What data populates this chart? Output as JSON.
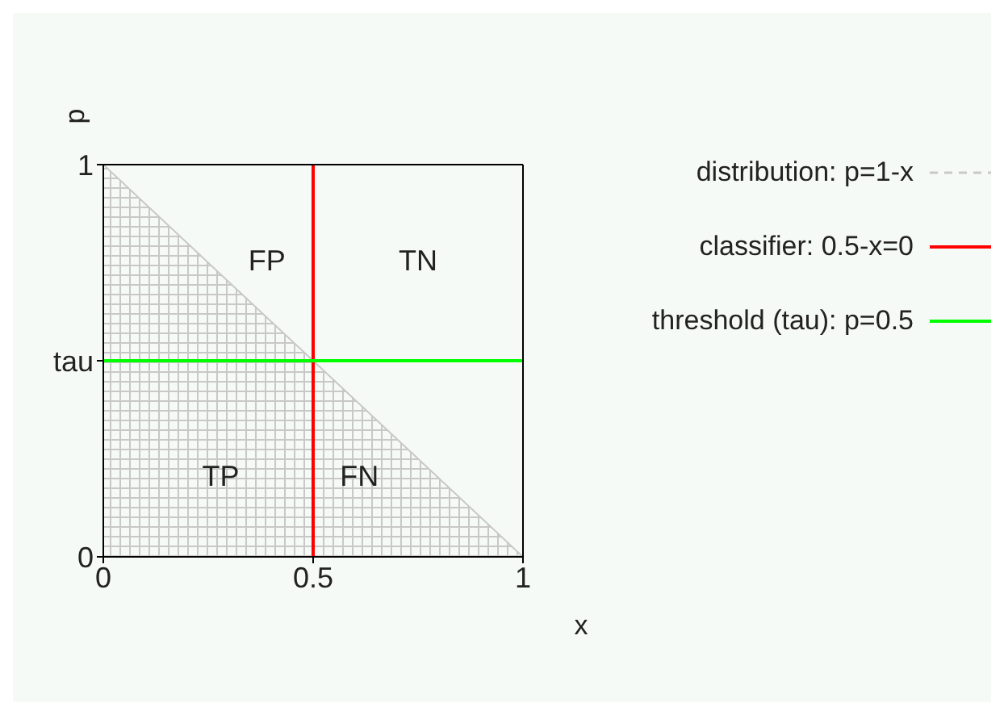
{
  "chart_data": {
    "type": "line",
    "xlabel": "x",
    "ylabel": "p",
    "xlim": [
      0,
      1
    ],
    "ylim": [
      0,
      1
    ],
    "xticks": [
      0,
      0.5,
      1
    ],
    "yticks": [
      0,
      {
        "value": 0.5,
        "label": "tau"
      },
      1
    ],
    "legend": "right",
    "series": [
      {
        "name": "distribution: p=1-x",
        "type": "area",
        "color": "#c8c8c8",
        "x": [
          0,
          1
        ],
        "values": [
          1,
          0
        ]
      },
      {
        "name": "classifier: 0.5-x=0",
        "color": "#ff0000",
        "x": [
          0.5,
          0.5
        ],
        "values": [
          0,
          1
        ]
      },
      {
        "name": "threshold (tau): p=0.5",
        "color": "#00ff00",
        "x": [
          0,
          1
        ],
        "values": [
          0.5,
          0.5
        ]
      }
    ],
    "annotations": [
      "FP",
      "TN",
      "TP",
      "FN"
    ]
  }
}
